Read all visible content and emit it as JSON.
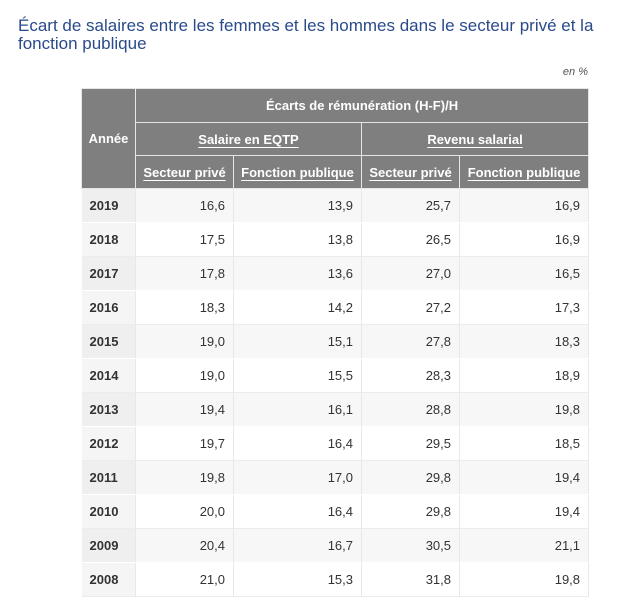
{
  "title": "Écart de salaires entre les femmes et les hommes dans le secteur privé et la fonction publique",
  "unit": "en %",
  "table": {
    "header_year": "Année",
    "header_group": "Écarts de rémunération (H-F)/H",
    "header_salary": "Salaire en EQTP",
    "header_income": "Revenu salarial",
    "header_private": "Secteur privé",
    "header_public": "Fonction publique",
    "rows": [
      {
        "year": "2019",
        "sal_private": "16,6",
        "sal_public": "13,9",
        "inc_private": "25,7",
        "inc_public": "16,9"
      },
      {
        "year": "2018",
        "sal_private": "17,5",
        "sal_public": "13,8",
        "inc_private": "26,5",
        "inc_public": "16,9"
      },
      {
        "year": "2017",
        "sal_private": "17,8",
        "sal_public": "13,6",
        "inc_private": "27,0",
        "inc_public": "16,5"
      },
      {
        "year": "2016",
        "sal_private": "18,3",
        "sal_public": "14,2",
        "inc_private": "27,2",
        "inc_public": "17,3"
      },
      {
        "year": "2015",
        "sal_private": "19,0",
        "sal_public": "15,1",
        "inc_private": "27,8",
        "inc_public": "18,3"
      },
      {
        "year": "2014",
        "sal_private": "19,0",
        "sal_public": "15,5",
        "inc_private": "28,3",
        "inc_public": "18,9"
      },
      {
        "year": "2013",
        "sal_private": "19,4",
        "sal_public": "16,1",
        "inc_private": "28,8",
        "inc_public": "19,8"
      },
      {
        "year": "2012",
        "sal_private": "19,7",
        "sal_public": "16,4",
        "inc_private": "29,5",
        "inc_public": "18,5"
      },
      {
        "year": "2011",
        "sal_private": "19,8",
        "sal_public": "17,0",
        "inc_private": "29,8",
        "inc_public": "19,4"
      },
      {
        "year": "2010",
        "sal_private": "20,0",
        "sal_public": "16,4",
        "inc_private": "29,8",
        "inc_public": "19,4"
      },
      {
        "year": "2009",
        "sal_private": "20,4",
        "sal_public": "16,7",
        "inc_private": "30,5",
        "inc_public": "21,1"
      },
      {
        "year": "2008",
        "sal_private": "21,0",
        "sal_public": "15,3",
        "inc_private": "31,8",
        "inc_public": "19,8"
      }
    ]
  }
}
